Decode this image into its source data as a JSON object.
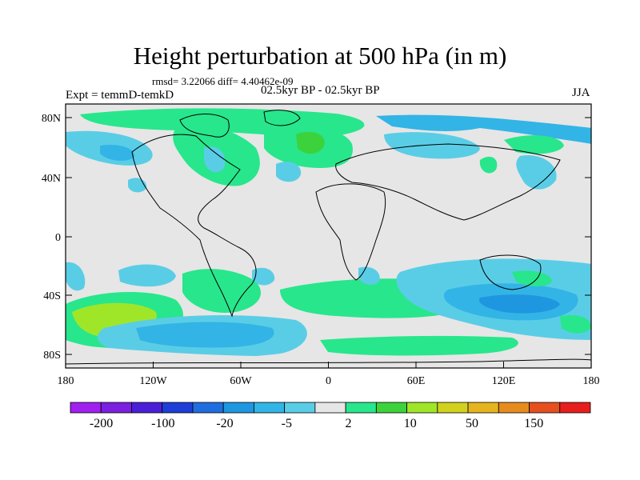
{
  "title": "Height perturbation at 500 hPa (in m)",
  "stats_line": "rmsd= 3.22066 diff= 4.40462e-09",
  "left_label": "Expt = temmD-temkD",
  "center_label": "02.5kyr BP - 02.5kyr BP",
  "right_label": "JJA",
  "y_ticks": [
    "80N",
    "40N",
    "0",
    "40S",
    "80S"
  ],
  "x_ticks": [
    "180",
    "120W",
    "60W",
    "0",
    "60E",
    "120E",
    "180"
  ],
  "colorbar": {
    "colors": [
      "#a020f0",
      "#7b1fe0",
      "#4b1fd8",
      "#1e3ed8",
      "#1e6ee0",
      "#1e96e0",
      "#32b4e6",
      "#5acde6",
      "#e6e6e6",
      "#28e68c",
      "#3cd23c",
      "#a0e628",
      "#d2d21e",
      "#e6b41e",
      "#e68c1e",
      "#e6501e",
      "#e61e1e"
    ],
    "tick_labels": [
      "-200",
      "-100",
      "-20",
      "-5",
      "2",
      "10",
      "50",
      "150"
    ]
  }
}
